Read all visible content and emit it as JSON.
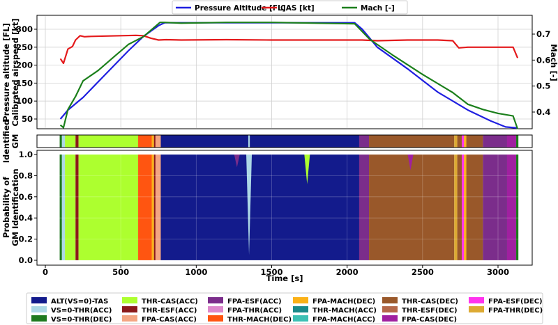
{
  "chart_data": [
    {
      "type": "line",
      "panel": "top",
      "xlim": [
        0,
        3150
      ],
      "ylabel_left": "Pressure altitude [FL]\nCalibrated airspeed [kt]",
      "ylabel_right": "Mach [-]",
      "yticks_left": [
        "50",
        "100",
        "150",
        "200",
        "250",
        "300"
      ],
      "yticks_right": [
        "0.4",
        "0.5",
        "0.6",
        "0.7"
      ],
      "grid": true,
      "legend": {
        "placement": "top-center",
        "entries": [
          "Pressure Altitude [FL]",
          "CAS [kt]",
          "Mach [-]"
        ]
      },
      "series": [
        {
          "name": "Pressure Altitude [FL]",
          "axis": "left",
          "color": "#1f1fe0",
          "x": [
            100,
            150,
            250,
            400,
            550,
            650,
            750,
            790,
            900,
            1200,
            1500,
            1800,
            2050,
            2100,
            2200,
            2400,
            2600,
            2800,
            2950,
            3050,
            3130
          ],
          "values": [
            50,
            75,
            110,
            175,
            240,
            280,
            310,
            318,
            318,
            318,
            318,
            318,
            318,
            300,
            250,
            190,
            125,
            75,
            45,
            28,
            25
          ]
        },
        {
          "name": "CAS [kt]",
          "axis": "left",
          "color": "#e41a1c",
          "x": [
            100,
            120,
            150,
            180,
            200,
            230,
            260,
            300,
            400,
            500,
            600,
            650,
            700,
            750,
            800,
            900,
            1200,
            1500,
            1800,
            2000,
            2100,
            2200,
            2400,
            2600,
            2700,
            2740,
            2800,
            2900,
            3000,
            3100,
            3130
          ],
          "values": [
            218,
            205,
            245,
            252,
            270,
            282,
            279,
            280,
            281,
            282,
            283,
            282,
            275,
            270,
            271,
            270,
            271,
            270,
            270,
            270,
            270,
            268,
            270,
            270,
            268,
            248,
            250,
            250,
            250,
            250,
            220
          ]
        },
        {
          "name": "Mach [-]",
          "axis": "right",
          "color": "#1b7f1b",
          "x": [
            100,
            120,
            150,
            200,
            250,
            350,
            450,
            550,
            650,
            760,
            790,
            900,
            1200,
            1500,
            1800,
            2050,
            2150,
            2300,
            2500,
            2700,
            2800,
            2900,
            3000,
            3100,
            3130
          ],
          "values": [
            0.35,
            0.34,
            0.41,
            0.46,
            0.52,
            0.56,
            0.61,
            0.66,
            0.69,
            0.745,
            0.745,
            0.742,
            0.745,
            0.745,
            0.742,
            0.74,
            0.68,
            0.62,
            0.545,
            0.475,
            0.43,
            0.41,
            0.395,
            0.385,
            0.335
          ]
        }
      ]
    },
    {
      "type": "heatmap",
      "panel": "middle",
      "ylabel": "Identified\nGM",
      "xlim": [
        0,
        3150
      ],
      "segments": [
        {
          "start": 95,
          "end": 110,
          "mode": "VS=0-THR(DEC)"
        },
        {
          "start": 110,
          "end": 130,
          "mode": "VS=0-THR(ACC)"
        },
        {
          "start": 130,
          "end": 200,
          "mode": "THR-CAS(ACC)"
        },
        {
          "start": 200,
          "end": 220,
          "mode": "THR-ESF(ACC)"
        },
        {
          "start": 220,
          "end": 615,
          "mode": "THR-CAS(ACC)"
        },
        {
          "start": 615,
          "end": 705,
          "mode": "THR-MACH(DEC)"
        },
        {
          "start": 705,
          "end": 720,
          "mode": "FPA-MACH(DEC)"
        },
        {
          "start": 720,
          "end": 730,
          "mode": "THR-ESF(ACC)"
        },
        {
          "start": 730,
          "end": 765,
          "mode": "FPA-CAS(ACC)"
        },
        {
          "start": 765,
          "end": 1345,
          "mode": "ALT(VS=0)-TAS"
        },
        {
          "start": 1345,
          "end": 1355,
          "mode": "VS=0-THR(ACC)"
        },
        {
          "start": 1355,
          "end": 2080,
          "mode": "ALT(VS=0)-TAS"
        },
        {
          "start": 2080,
          "end": 2145,
          "mode": "FPA-ESF(ACC)"
        },
        {
          "start": 2145,
          "end": 2710,
          "mode": "THR-CAS(DEC)"
        },
        {
          "start": 2710,
          "end": 2730,
          "mode": "FPA-THR(DEC)"
        },
        {
          "start": 2730,
          "end": 2760,
          "mode": "THR-CAS(DEC)"
        },
        {
          "start": 2760,
          "end": 2775,
          "mode": "FPA-ESF(DEC)"
        },
        {
          "start": 2775,
          "end": 2790,
          "mode": "FPA-MACH(DEC)"
        },
        {
          "start": 2790,
          "end": 2900,
          "mode": "THR-CAS(DEC)"
        },
        {
          "start": 2900,
          "end": 3060,
          "mode": "FPA-ESF(ACC)"
        },
        {
          "start": 3060,
          "end": 3120,
          "mode": "FPA-CAS(DEC)"
        },
        {
          "start": 3120,
          "end": 3135,
          "mode": "VS=0-THR(DEC)"
        }
      ]
    },
    {
      "type": "area",
      "panel": "bottom",
      "xlim": [
        0,
        3150
      ],
      "ylim": [
        0,
        1
      ],
      "ylabel": "Probability of\nGM Identification",
      "xlabel": "Time [s]",
      "xticks": [
        "0",
        "500",
        "1000",
        "1500",
        "2000",
        "2500",
        "3000"
      ],
      "yticks": [
        "0.0",
        "0.2",
        "0.4",
        "0.6",
        "0.8",
        "1.0"
      ],
      "grid": true,
      "segments": [
        {
          "start": 95,
          "end": 110,
          "mode": "VS=0-THR(DEC)"
        },
        {
          "start": 110,
          "end": 130,
          "mode": "VS=0-THR(ACC)"
        },
        {
          "start": 130,
          "end": 200,
          "mode": "THR-CAS(ACC)"
        },
        {
          "start": 200,
          "end": 220,
          "mode": "THR-ESF(ACC)"
        },
        {
          "start": 220,
          "end": 615,
          "mode": "THR-CAS(ACC)"
        },
        {
          "start": 615,
          "end": 705,
          "mode": "THR-MACH(DEC)"
        },
        {
          "start": 705,
          "end": 720,
          "mode": "FPA-MACH(DEC)"
        },
        {
          "start": 720,
          "end": 730,
          "mode": "THR-ESF(ACC)"
        },
        {
          "start": 730,
          "end": 765,
          "mode": "FPA-CAS(ACC)"
        },
        {
          "start": 765,
          "end": 2080,
          "mode": "ALT(VS=0)-TAS"
        },
        {
          "start": 2080,
          "end": 2145,
          "mode": "FPA-ESF(ACC)"
        },
        {
          "start": 2145,
          "end": 2710,
          "mode": "THR-CAS(DEC)"
        },
        {
          "start": 2710,
          "end": 2730,
          "mode": "FPA-THR(DEC)"
        },
        {
          "start": 2730,
          "end": 2760,
          "mode": "THR-CAS(DEC)"
        },
        {
          "start": 2760,
          "end": 2775,
          "mode": "FPA-ESF(DEC)"
        },
        {
          "start": 2775,
          "end": 2790,
          "mode": "FPA-MACH(DEC)"
        },
        {
          "start": 2790,
          "end": 2900,
          "mode": "THR-CAS(DEC)"
        },
        {
          "start": 2900,
          "end": 3060,
          "mode": "FPA-ESF(ACC)"
        },
        {
          "start": 3060,
          "end": 3120,
          "mode": "FPA-CAS(DEC)"
        },
        {
          "start": 3120,
          "end": 3135,
          "mode": "VS=0-THR(DEC)"
        }
      ],
      "dips": [
        {
          "x": 1350,
          "min": 0.05,
          "mode": "VS=0-THR(ACC)"
        },
        {
          "x": 1735,
          "min": 0.72,
          "mode": "THR-CAS(ACC)"
        },
        {
          "x": 1270,
          "min": 0.88,
          "mode": "FPA-ESF(ACC)"
        },
        {
          "x": 2420,
          "min": 0.85,
          "mode": "FPA-CAS(DEC)"
        }
      ]
    }
  ],
  "legend": [
    {
      "label": "ALT(VS=0)-TAS",
      "color": "#131b8c"
    },
    {
      "label": "VS=0-THR(ACC)",
      "color": "#add8e6"
    },
    {
      "label": "VS=0-THR(DEC)",
      "color": "#1e7a1e"
    },
    {
      "label": "THR-CAS(ACC)",
      "color": "#adff2f"
    },
    {
      "label": "THR-ESF(ACC)",
      "color": "#8b1a1a"
    },
    {
      "label": "FPA-CAS(ACC)",
      "color": "#f4a582"
    },
    {
      "label": "FPA-ESF(ACC)",
      "color": "#7b2d8b"
    },
    {
      "label": "FPA-THR(ACC)",
      "color": "#dd88cc"
    },
    {
      "label": "THR-MACH(DEC)",
      "color": "#ff5511"
    },
    {
      "label": "FPA-MACH(DEC)",
      "color": "#fbb117"
    },
    {
      "label": "THR-MACH(ACC)",
      "color": "#1a8a8a"
    },
    {
      "label": "FPA-MACH(ACC)",
      "color": "#3cc0b4"
    },
    {
      "label": "THR-CAS(DEC)",
      "color": "#99582a"
    },
    {
      "label": "THR-ESF(DEC)",
      "color": "#b5694a"
    },
    {
      "label": "FPA-CAS(DEC)",
      "color": "#a020a0"
    },
    {
      "label": "FPA-ESF(DEC)",
      "color": "#ff33ee"
    },
    {
      "label": "FPA-THR(DEC)",
      "color": "#ddaa33"
    }
  ]
}
